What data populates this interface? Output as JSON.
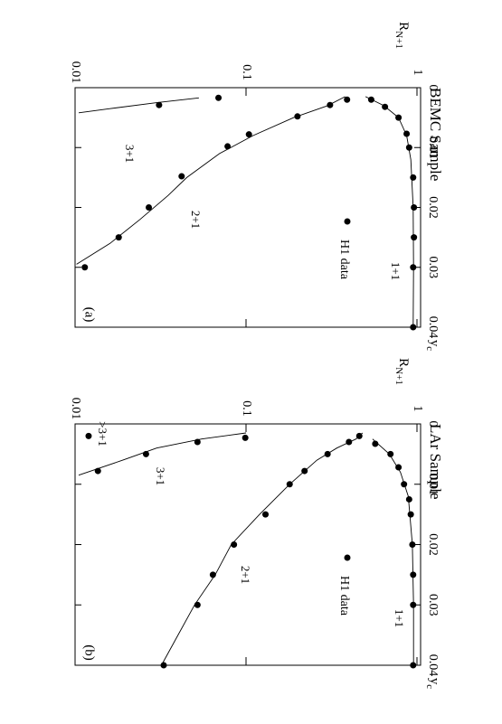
{
  "chart_data": [
    {
      "type": "scatter",
      "title": "BEMC Sample",
      "panel_label": "(a)",
      "legend_label": "H1 data",
      "ylabel": {
        "text": "R",
        "sub": "N+1"
      },
      "xlabel": {
        "text": "y",
        "sub": "c"
      },
      "log_y": true,
      "xlim": [
        0,
        0.04
      ],
      "ylim": [
        0.01,
        1.05
      ],
      "xticks": [
        0,
        0.01,
        0.02,
        0.03,
        0.04
      ],
      "yticks": [
        0.01,
        0.1,
        1
      ],
      "color": "#000000",
      "series": [
        {
          "name": "1+1",
          "x": [
            0.002,
            0.0032,
            0.005,
            0.0077,
            0.01,
            0.015,
            0.02,
            0.025,
            0.03,
            0.04
          ],
          "values": [
            0.54,
            0.65,
            0.78,
            0.87,
            0.9,
            0.95,
            0.96,
            0.96,
            0.95,
            0.95
          ]
        },
        {
          "name": "2+1",
          "x": [
            0.002,
            0.0029,
            0.0048,
            0.0078,
            0.0098,
            0.0148,
            0.02,
            0.025,
            0.03
          ],
          "values": [
            0.39,
            0.31,
            0.2,
            0.104,
            0.078,
            0.042,
            0.027,
            0.018,
            0.0114
          ]
        },
        {
          "name": "3+1",
          "x": [
            0.0017,
            0.0029
          ],
          "values": [
            0.069,
            0.031
          ]
        }
      ],
      "curves": [
        {
          "x": [
            0.0015,
            0.003,
            0.005,
            0.008,
            0.012,
            0.02,
            0.03,
            0.04
          ],
          "values": [
            0.5,
            0.64,
            0.78,
            0.87,
            0.92,
            0.95,
            0.955,
            0.95
          ]
        },
        {
          "x": [
            0.0015,
            0.003,
            0.005,
            0.008,
            0.011,
            0.015,
            0.018,
            0.022,
            0.026,
            0.0295
          ],
          "values": [
            0.38,
            0.3,
            0.19,
            0.11,
            0.07,
            0.045,
            0.035,
            0.024,
            0.016,
            0.0102
          ]
        },
        {
          "x": [
            0.0017,
            0.0025,
            0.0035,
            0.0042
          ],
          "values": [
            0.053,
            0.03,
            0.016,
            0.0105
          ]
        }
      ]
    },
    {
      "type": "scatter",
      "title": "LAr Sample",
      "panel_label": "(b)",
      "legend_label": "H1 data",
      "ylabel": {
        "text": "R",
        "sub": "N+1"
      },
      "xlabel": {
        "text": "y",
        "sub": "c"
      },
      "log_y": true,
      "xlim": [
        0,
        0.04
      ],
      "ylim": [
        0.01,
        1.05
      ],
      "xticks": [
        0,
        0.01,
        0.02,
        0.03,
        0.04
      ],
      "yticks": [
        0.01,
        0.1,
        1
      ],
      "color": "#000000",
      "series": [
        {
          "name": "1+1",
          "x": [
            0.0033,
            0.005,
            0.0072,
            0.01,
            0.0125,
            0.015,
            0.02,
            0.025,
            0.03,
            0.04
          ],
          "values": [
            0.57,
            0.7,
            0.78,
            0.84,
            0.9,
            0.92,
            0.94,
            0.95,
            0.95,
            0.95
          ]
        },
        {
          "name": "2+1",
          "x": [
            0.002,
            0.003,
            0.005,
            0.0078,
            0.01,
            0.015,
            0.02,
            0.025,
            0.03,
            0.04
          ],
          "values": [
            0.46,
            0.4,
            0.3,
            0.22,
            0.18,
            0.13,
            0.085,
            0.064,
            0.052,
            0.033
          ]
        },
        {
          "name": "3+1",
          "x": [
            0.0023,
            0.003,
            0.005
          ],
          "values": [
            0.099,
            0.052,
            0.026
          ]
        },
        {
          "name": ">3+1",
          "x": [
            0.002,
            0.0078
          ],
          "values": [
            0.012,
            0.0136
          ]
        }
      ],
      "curves": [
        {
          "x": [
            0.0025,
            0.005,
            0.008,
            0.012,
            0.02,
            0.03,
            0.04
          ],
          "values": [
            0.55,
            0.69,
            0.8,
            0.89,
            0.94,
            0.955,
            0.955
          ]
        },
        {
          "x": [
            0.0015,
            0.0025,
            0.004,
            0.006,
            0.01,
            0.015,
            0.02,
            0.025,
            0.03,
            0.035,
            0.04
          ],
          "values": [
            0.48,
            0.44,
            0.34,
            0.26,
            0.18,
            0.12,
            0.082,
            0.066,
            0.05,
            0.04,
            0.032
          ]
        },
        {
          "x": [
            0.0015,
            0.0025,
            0.004,
            0.006,
            0.0085
          ],
          "values": [
            0.1,
            0.055,
            0.03,
            0.019,
            0.0105
          ]
        }
      ]
    }
  ]
}
